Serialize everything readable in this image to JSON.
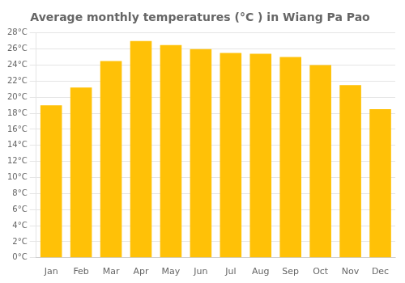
{
  "chart_data": {
    "type": "bar",
    "title": "Average monthly temperatures (°C ) in Wiang Pa Pao",
    "categories": [
      "Jan",
      "Feb",
      "Mar",
      "Apr",
      "May",
      "Jun",
      "Jul",
      "Aug",
      "Sep",
      "Oct",
      "Nov",
      "Dec"
    ],
    "values": [
      19.0,
      21.2,
      24.5,
      27.0,
      26.5,
      26.0,
      25.5,
      25.4,
      25.0,
      24.0,
      21.5,
      18.5
    ],
    "color": "#FFC107",
    "ylim": [
      0,
      28
    ],
    "yticks": [
      {
        "value": 0,
        "label": "0°C"
      },
      {
        "value": 2,
        "label": "2°C"
      },
      {
        "value": 4,
        "label": "4°C"
      },
      {
        "value": 6,
        "label": "6°C"
      },
      {
        "value": 8,
        "label": "8°C"
      },
      {
        "value": 10,
        "label": "10°C"
      },
      {
        "value": 12,
        "label": "12°C"
      },
      {
        "value": 14,
        "label": "14°C"
      },
      {
        "value": 16,
        "label": "16°C"
      },
      {
        "value": 18,
        "label": "18°C"
      },
      {
        "value": 20,
        "label": "20°C"
      },
      {
        "value": 22,
        "label": "22°C"
      },
      {
        "value": 24,
        "label": "24°C"
      },
      {
        "value": 26,
        "label": "26°C"
      },
      {
        "value": 28,
        "label": "28°C"
      }
    ],
    "grid": true
  }
}
